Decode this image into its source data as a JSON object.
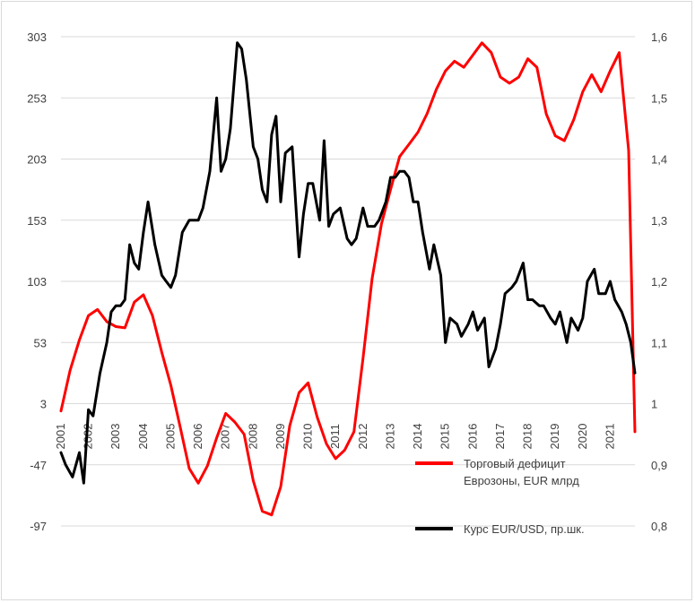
{
  "chart_data": {
    "type": "line",
    "title": "",
    "x_categories": [
      "2001",
      "2002",
      "2003",
      "2004",
      "2005",
      "2006",
      "2007",
      "2008",
      "2009",
      "2010",
      "2011",
      "2012",
      "2013",
      "2014",
      "2015",
      "2016",
      "2017",
      "2018",
      "2019",
      "2020",
      "2021"
    ],
    "y_left": {
      "ticks": [
        303,
        253,
        203,
        153,
        103,
        53,
        3,
        -47,
        -97
      ],
      "range": [
        -97,
        303
      ],
      "label": ""
    },
    "y_right": {
      "ticks": [
        "1,6",
        "1,5",
        "1,4",
        "1,3",
        "1,2",
        "1,1",
        "1",
        "0,9",
        "0,8"
      ],
      "range": [
        0.8,
        1.6
      ],
      "label": ""
    },
    "grid": "horizontal",
    "series": [
      {
        "name": "Торговый дефицит Еврозоны, EUR млрд",
        "legend_lines": [
          "Торговый дефицит",
          "Еврозоны, EUR млрд"
        ],
        "axis": "left",
        "color": "#ff0000",
        "x": [
          2001.0,
          2001.33,
          2001.67,
          2002.0,
          2002.33,
          2002.67,
          2003.0,
          2003.33,
          2003.67,
          2004.0,
          2004.33,
          2004.67,
          2005.0,
          2005.33,
          2005.67,
          2006.0,
          2006.33,
          2006.67,
          2007.0,
          2007.33,
          2007.67,
          2008.0,
          2008.33,
          2008.67,
          2009.0,
          2009.33,
          2009.67,
          2010.0,
          2010.33,
          2010.67,
          2011.0,
          2011.33,
          2011.67,
          2012.0,
          2012.33,
          2012.67,
          2013.0,
          2013.33,
          2013.67,
          2014.0,
          2014.33,
          2014.67,
          2015.0,
          2015.33,
          2015.67,
          2016.0,
          2016.33,
          2016.67,
          2017.0,
          2017.33,
          2017.67,
          2018.0,
          2018.33,
          2018.67,
          2019.0,
          2019.33,
          2019.67,
          2020.0,
          2020.33,
          2020.67,
          2021.0,
          2021.33,
          2021.67,
          2021.9
        ],
        "values": [
          -3,
          30,
          55,
          75,
          80,
          70,
          66,
          65,
          86,
          92,
          75,
          45,
          18,
          -15,
          -50,
          -62,
          -48,
          -25,
          -5,
          -12,
          -22,
          -60,
          -85,
          -88,
          -65,
          -15,
          12,
          20,
          -8,
          -30,
          -42,
          -35,
          -20,
          40,
          105,
          150,
          178,
          205,
          215,
          225,
          240,
          260,
          275,
          283,
          278,
          288,
          298,
          290,
          270,
          265,
          270,
          285,
          278,
          240,
          222,
          218,
          235,
          258,
          272,
          258,
          275,
          290,
          210,
          -20
        ]
      },
      {
        "name": "Курс EUR/USD, пр.шк.",
        "legend_lines": [
          "Курс EUR/USD, пр.шк."
        ],
        "axis": "right",
        "color": "#000000",
        "x": [
          2001.0,
          2001.17,
          2001.42,
          2001.67,
          2001.83,
          2002.0,
          2002.17,
          2002.42,
          2002.67,
          2002.83,
          2003.0,
          2003.17,
          2003.33,
          2003.5,
          2003.67,
          2003.83,
          2004.0,
          2004.17,
          2004.42,
          2004.67,
          2004.83,
          2005.0,
          2005.17,
          2005.42,
          2005.67,
          2005.83,
          2006.0,
          2006.17,
          2006.42,
          2006.67,
          2006.83,
          2007.0,
          2007.17,
          2007.42,
          2007.58,
          2007.75,
          2008.0,
          2008.17,
          2008.33,
          2008.5,
          2008.67,
          2008.83,
          2009.0,
          2009.17,
          2009.42,
          2009.67,
          2009.83,
          2010.0,
          2010.17,
          2010.42,
          2010.58,
          2010.75,
          2010.92,
          2011.17,
          2011.42,
          2011.58,
          2011.75,
          2012.0,
          2012.17,
          2012.42,
          2012.58,
          2012.83,
          2013.0,
          2013.17,
          2013.33,
          2013.5,
          2013.67,
          2013.83,
          2014.0,
          2014.17,
          2014.42,
          2014.58,
          2014.83,
          2015.0,
          2015.17,
          2015.42,
          2015.58,
          2015.83,
          2016.0,
          2016.17,
          2016.42,
          2016.58,
          2016.83,
          2017.0,
          2017.17,
          2017.42,
          2017.58,
          2017.83,
          2018.0,
          2018.17,
          2018.42,
          2018.58,
          2018.83,
          2019.0,
          2019.17,
          2019.42,
          2019.58,
          2019.83,
          2020.0,
          2020.17,
          2020.42,
          2020.58,
          2020.83,
          2021.0,
          2021.17,
          2021.42,
          2021.58,
          2021.75,
          2021.9
        ],
        "values": [
          0.92,
          0.9,
          0.88,
          0.92,
          0.87,
          0.99,
          0.98,
          1.05,
          1.1,
          1.15,
          1.16,
          1.16,
          1.17,
          1.26,
          1.23,
          1.22,
          1.28,
          1.33,
          1.26,
          1.21,
          1.2,
          1.19,
          1.21,
          1.28,
          1.3,
          1.3,
          1.3,
          1.32,
          1.38,
          1.5,
          1.38,
          1.4,
          1.45,
          1.59,
          1.58,
          1.53,
          1.42,
          1.4,
          1.35,
          1.33,
          1.44,
          1.47,
          1.33,
          1.41,
          1.42,
          1.24,
          1.31,
          1.36,
          1.36,
          1.3,
          1.43,
          1.29,
          1.31,
          1.32,
          1.27,
          1.26,
          1.27,
          1.32,
          1.29,
          1.29,
          1.3,
          1.33,
          1.37,
          1.37,
          1.38,
          1.38,
          1.37,
          1.33,
          1.33,
          1.28,
          1.22,
          1.26,
          1.21,
          1.1,
          1.14,
          1.13,
          1.11,
          1.13,
          1.15,
          1.12,
          1.14,
          1.06,
          1.09,
          1.13,
          1.18,
          1.19,
          1.2,
          1.23,
          1.17,
          1.17,
          1.16,
          1.16,
          1.14,
          1.13,
          1.15,
          1.1,
          1.14,
          1.12,
          1.14,
          1.2,
          1.22,
          1.18,
          1.18,
          1.2,
          1.17,
          1.15,
          1.13,
          1.1,
          1.05
        ]
      }
    ]
  }
}
